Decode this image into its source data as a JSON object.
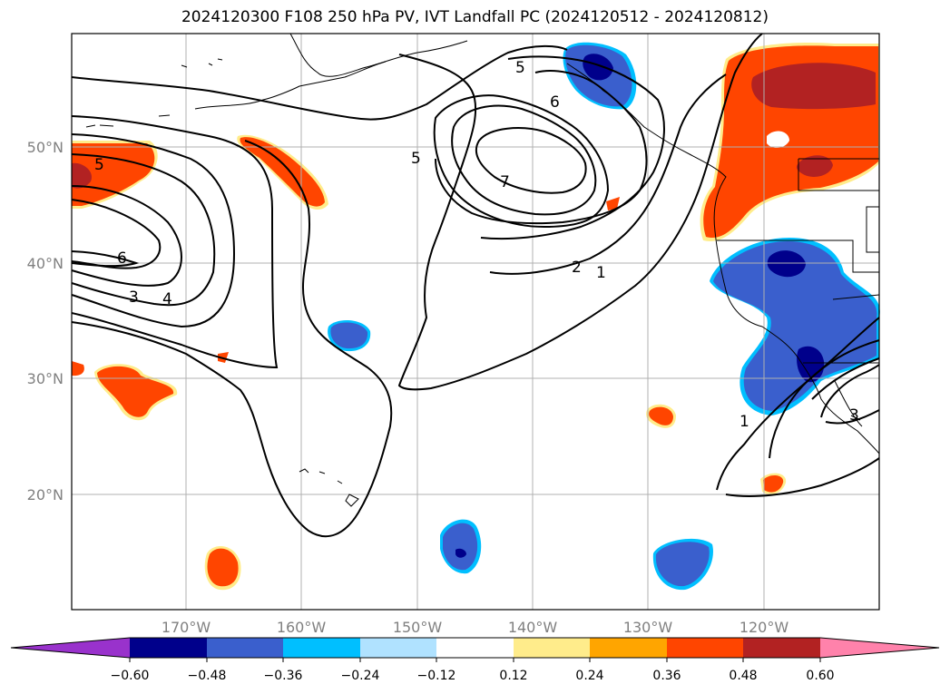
{
  "title": "2024120300 F108 250 hPa PV, IVT Landfall PC (2024120512 - 2024120812)",
  "map": {
    "lon_ticks": [
      "170°W",
      "160°W",
      "150°W",
      "140°W",
      "130°W",
      "120°W"
    ],
    "lat_ticks": [
      "50°N",
      "40°N",
      "30°N",
      "20°N"
    ],
    "contour_labels": [
      "5",
      "6",
      "5",
      "7",
      "2",
      "1",
      "5",
      "6",
      "3",
      "4",
      "1",
      "3"
    ]
  },
  "colorbar": {
    "labels": [
      "−0.60",
      "−0.48",
      "−0.36",
      "−0.24",
      "−0.12",
      "0.12",
      "0.24",
      "0.36",
      "0.48",
      "0.60"
    ],
    "colors": [
      "#9932cc",
      "#00008b",
      "#3a5fcd",
      "#00bfff",
      "#b0e2ff",
      "#ffffff",
      "#ffec8b",
      "#ffa500",
      "#ff4500",
      "#b22222",
      "#ff82ab"
    ]
  }
}
